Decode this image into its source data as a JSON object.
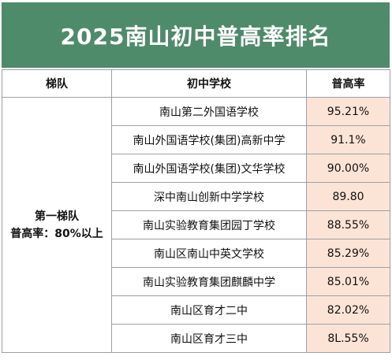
{
  "title": "2025南山初中普高率排名",
  "headers": [
    "梯队",
    "初中学校",
    "普高率"
  ],
  "tier": {
    "name": "第一梯队",
    "criterion": "普高率：80%以上"
  },
  "rows": [
    {
      "school": "南山第二外国语学校",
      "rate": "95.21%"
    },
    {
      "school": "南山外国语学校(集团)高新中学",
      "rate": "91.1%"
    },
    {
      "school": "南山外国语学校(集团)文华学校",
      "rate": "90.00%"
    },
    {
      "school": "深中南山创新中学学校",
      "rate": "89.80"
    },
    {
      "school": "南山实验教育集团园丁学校",
      "rate": "88.55%"
    },
    {
      "school": "南山区南山中英文学校",
      "rate": "85.29%"
    },
    {
      "school": "南山实验教育集团麒麟中学",
      "rate": "85.01%"
    },
    {
      "school": "南山区育才二中",
      "rate": "82.02%"
    },
    {
      "school": "南山区育才三中",
      "rate": "8L.55%"
    }
  ],
  "colors": {
    "title_bg": "#4e8b6b",
    "rate_bg": "#fbe4d5"
  }
}
